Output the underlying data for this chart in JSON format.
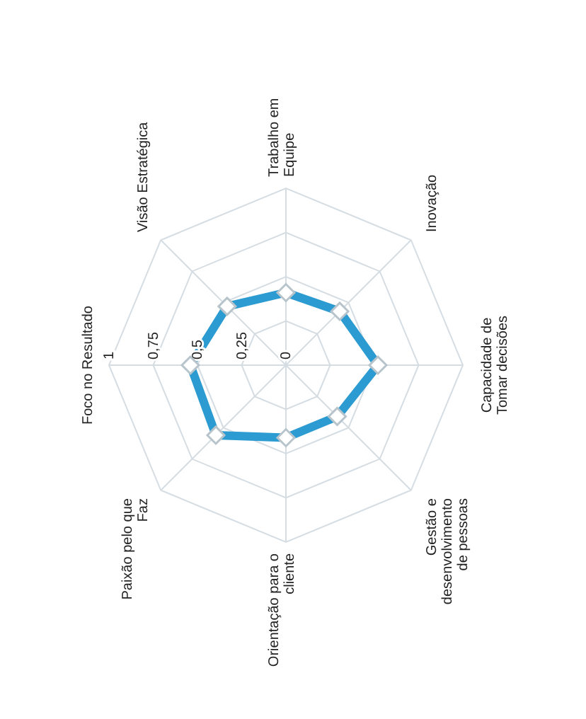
{
  "chart_data": {
    "type": "radar",
    "categories": [
      "Foco no Resultado",
      "Visão Estratégica",
      "Trabalho em\nEquipe",
      "Inovação",
      "Capacidade de\nTomar decisões",
      "Gestão e\ndesenvolvimento\nde pessoas",
      "Orientação para o\ncliente",
      "Paixão pelo que\nFaz"
    ],
    "series": [
      {
        "color": "#2b9bd1",
        "values": [
          0.54,
          0.47,
          0.41,
          0.43,
          0.52,
          0.41,
          0.41,
          0.56
        ]
      }
    ],
    "ylim": [
      0,
      1
    ],
    "yticks": [
      0,
      {
        "value": 0.25,
        "label": "0,25"
      },
      {
        "value": 0.5,
        "label": "0,5"
      },
      {
        "value": 0.75,
        "label": "0,75"
      },
      1
    ],
    "grid": true,
    "marker": "diamond"
  }
}
